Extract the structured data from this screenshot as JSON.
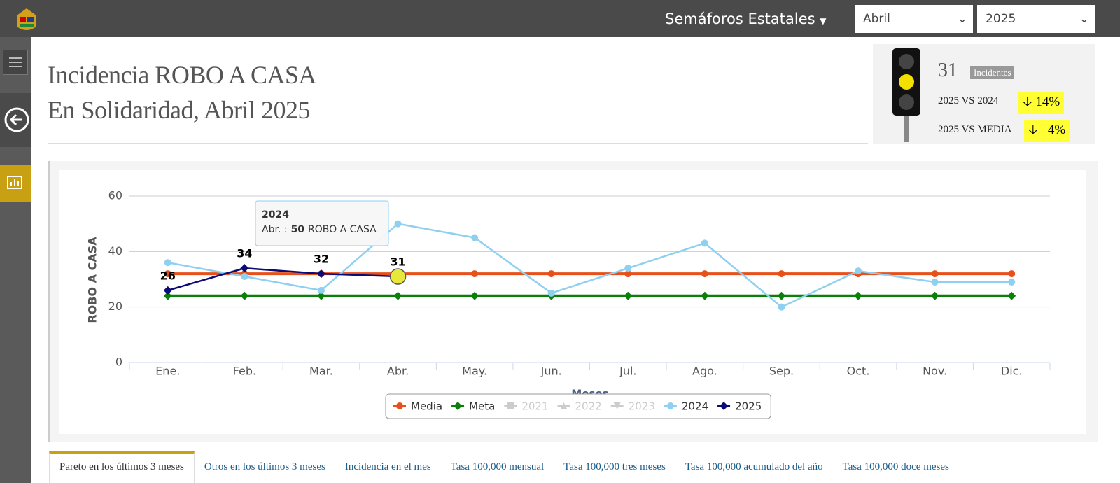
{
  "header": {
    "menu": "Semáforos Estatales",
    "month": "Abril",
    "year": "2025"
  },
  "page_title": [
    "Incidencia ROBO A CASA",
    "En Solidaridad, Abril 2025"
  ],
  "summary": {
    "count": "31",
    "count_label": "Incidentes",
    "rows": [
      {
        "label": "2025 VS 2024",
        "value": "14%"
      },
      {
        "label": "2025 VS MEDIA",
        "value": "4%"
      }
    ]
  },
  "chart_data": {
    "type": "line",
    "ylabel": "ROBO A CASA",
    "xlabel": "Meses",
    "categories": [
      "Ene.",
      "Feb.",
      "Mar.",
      "Abr.",
      "May.",
      "Jun.",
      "Jul.",
      "Ago.",
      "Sep.",
      "Oct.",
      "Nov.",
      "Dic."
    ],
    "ylim": [
      0,
      60
    ],
    "yticks": [
      0,
      20,
      40,
      60
    ],
    "grid": true,
    "series": [
      {
        "name": "Media",
        "color": "#e8501a",
        "marker": "circle",
        "visible": true,
        "values": [
          32,
          32,
          32,
          32,
          32,
          32,
          32,
          32,
          32,
          32,
          32,
          32
        ]
      },
      {
        "name": "Meta",
        "color": "#0a7f0a",
        "marker": "diamond",
        "visible": true,
        "values": [
          24,
          24,
          24,
          24,
          24,
          24,
          24,
          24,
          24,
          24,
          24,
          24
        ]
      },
      {
        "name": "2021",
        "color": "#cccccc",
        "marker": "square",
        "visible": false,
        "values": [
          null,
          null,
          null,
          null,
          null,
          null,
          null,
          null,
          null,
          null,
          null,
          null
        ]
      },
      {
        "name": "2022",
        "color": "#cccccc",
        "marker": "triangle",
        "visible": false,
        "values": [
          null,
          null,
          null,
          null,
          null,
          null,
          null,
          null,
          null,
          null,
          null,
          null
        ]
      },
      {
        "name": "2023",
        "color": "#cccccc",
        "marker": "triangle-down",
        "visible": false,
        "values": [
          null,
          null,
          null,
          null,
          null,
          null,
          null,
          null,
          null,
          null,
          null,
          null
        ]
      },
      {
        "name": "2024",
        "color": "#8fd0f0",
        "marker": "circle",
        "visible": true,
        "values": [
          36,
          31,
          26,
          50,
          45,
          25,
          34,
          43,
          20,
          33,
          29,
          29
        ]
      },
      {
        "name": "2025",
        "color": "#0a0a78",
        "marker": "diamond",
        "visible": true,
        "data_labels": true,
        "values": [
          26,
          34,
          32,
          31,
          null,
          null,
          null,
          null,
          null,
          null,
          null,
          null
        ]
      }
    ],
    "tooltip": {
      "title": "2024",
      "label": "Abr. :",
      "value": 50,
      "unit": "ROBO A CASA"
    }
  },
  "tabs": [
    "Pareto en los últimos 3 meses",
    "Otros en los últimos 3 meses",
    "Incidencia en el mes",
    "Tasa 100,000 mensual",
    "Tasa 100,000 tres meses",
    "Tasa 100,000 acumulado del año",
    "Tasa 100,000 doce meses"
  ]
}
